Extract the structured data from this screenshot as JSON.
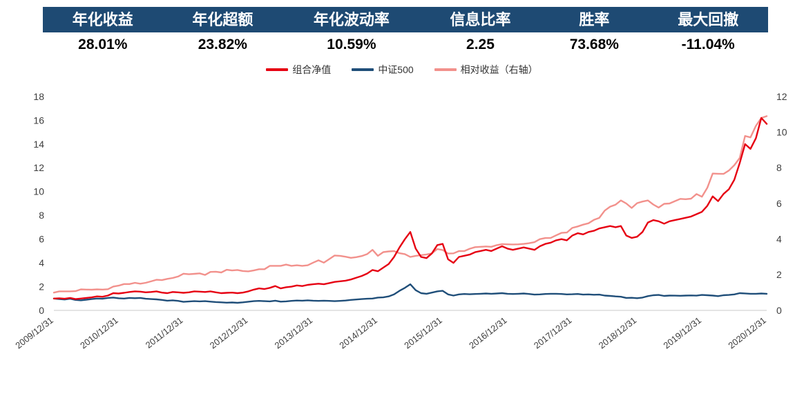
{
  "colors": {
    "header_bg": "#1e4a73",
    "portfolio_red": "#e60012",
    "index_navy": "#1f4e79",
    "relative_pink": "#f2918c",
    "axis_line": "#c8c8c8",
    "tick_text": "#3d3d3d"
  },
  "stats": {
    "items": [
      {
        "label": "年化收益",
        "value": "28.01%"
      },
      {
        "label": "年化超额",
        "value": "23.82%"
      },
      {
        "label": "年化波动率",
        "value": "10.59%"
      },
      {
        "label": "信息比率",
        "value": "2.25"
      },
      {
        "label": "胜率",
        "value": "73.68%"
      },
      {
        "label": "最大回撤",
        "value": "-11.04%"
      }
    ]
  },
  "chart_data": {
    "type": "line",
    "title": "",
    "grid": false,
    "legend_position": "top",
    "left_axis": {
      "min": 0,
      "max": 18,
      "step": 2,
      "ticks": [
        0,
        2,
        4,
        6,
        8,
        10,
        12,
        14,
        16,
        18
      ]
    },
    "right_axis": {
      "min": 0,
      "max": 12,
      "step": 2,
      "ticks": [
        0,
        2,
        4,
        6,
        8,
        10,
        12
      ]
    },
    "x_labels": [
      "2009/12/31",
      "2010/12/31",
      "2011/12/31",
      "2012/12/31",
      "2013/12/31",
      "2014/12/31",
      "2015/12/31",
      "2016/12/31",
      "2017/12/31",
      "2018/12/31",
      "2019/12/31",
      "2020/12/31"
    ],
    "x_label_month_indices": [
      0,
      12,
      24,
      36,
      48,
      60,
      72,
      84,
      96,
      108,
      120,
      132
    ],
    "series": [
      {
        "name": "组合净值",
        "axis": "left",
        "color": "#e60012",
        "values": [
          1.0,
          1.02,
          0.98,
          1.05,
          0.95,
          1.0,
          1.05,
          1.1,
          1.18,
          1.15,
          1.25,
          1.45,
          1.42,
          1.48,
          1.55,
          1.6,
          1.58,
          1.52,
          1.55,
          1.6,
          1.5,
          1.45,
          1.55,
          1.52,
          1.48,
          1.52,
          1.6,
          1.58,
          1.55,
          1.6,
          1.52,
          1.45,
          1.48,
          1.5,
          1.45,
          1.5,
          1.6,
          1.75,
          1.85,
          1.8,
          1.9,
          2.05,
          1.85,
          1.95,
          2.0,
          2.1,
          2.05,
          2.15,
          2.2,
          2.25,
          2.2,
          2.3,
          2.4,
          2.45,
          2.5,
          2.6,
          2.75,
          2.9,
          3.1,
          3.4,
          3.3,
          3.6,
          3.9,
          4.5,
          5.3,
          6.0,
          6.6,
          5.2,
          4.5,
          4.4,
          4.8,
          5.5,
          5.6,
          4.3,
          4.0,
          4.5,
          4.6,
          4.7,
          4.9,
          5.0,
          5.1,
          5.0,
          5.2,
          5.4,
          5.2,
          5.1,
          5.2,
          5.3,
          5.2,
          5.1,
          5.4,
          5.6,
          5.7,
          5.9,
          6.0,
          5.9,
          6.3,
          6.5,
          6.4,
          6.6,
          6.7,
          6.9,
          7.0,
          7.1,
          7.0,
          7.1,
          6.3,
          6.1,
          6.2,
          6.6,
          7.4,
          7.6,
          7.5,
          7.3,
          7.5,
          7.6,
          7.7,
          7.8,
          7.9,
          8.1,
          8.3,
          8.8,
          9.6,
          9.2,
          9.8,
          10.2,
          11.0,
          12.4,
          14.0,
          13.6,
          14.5,
          16.2,
          15.7
        ]
      },
      {
        "name": "中证500",
        "axis": "left",
        "color": "#1f4e79",
        "values": [
          1.0,
          0.95,
          0.92,
          0.98,
          0.88,
          0.85,
          0.9,
          0.95,
          1.0,
          0.98,
          1.05,
          1.08,
          1.02,
          1.0,
          1.05,
          1.03,
          1.05,
          0.98,
          0.95,
          0.93,
          0.88,
          0.82,
          0.85,
          0.8,
          0.72,
          0.75,
          0.78,
          0.76,
          0.78,
          0.74,
          0.7,
          0.68,
          0.65,
          0.67,
          0.64,
          0.68,
          0.73,
          0.78,
          0.8,
          0.78,
          0.76,
          0.82,
          0.74,
          0.76,
          0.8,
          0.83,
          0.82,
          0.85,
          0.82,
          0.8,
          0.82,
          0.8,
          0.78,
          0.8,
          0.83,
          0.88,
          0.92,
          0.95,
          0.98,
          1.0,
          1.08,
          1.1,
          1.18,
          1.35,
          1.65,
          1.9,
          2.2,
          1.7,
          1.45,
          1.4,
          1.5,
          1.6,
          1.65,
          1.35,
          1.25,
          1.35,
          1.38,
          1.36,
          1.38,
          1.4,
          1.42,
          1.4,
          1.42,
          1.45,
          1.4,
          1.38,
          1.4,
          1.42,
          1.38,
          1.33,
          1.35,
          1.38,
          1.4,
          1.4,
          1.38,
          1.35,
          1.36,
          1.38,
          1.33,
          1.35,
          1.32,
          1.33,
          1.25,
          1.22,
          1.18,
          1.15,
          1.05,
          1.06,
          1.03,
          1.08,
          1.2,
          1.28,
          1.3,
          1.22,
          1.25,
          1.24,
          1.23,
          1.25,
          1.26,
          1.24,
          1.3,
          1.28,
          1.25,
          1.2,
          1.28,
          1.3,
          1.35,
          1.45,
          1.43,
          1.4,
          1.4,
          1.42,
          1.4
        ]
      },
      {
        "name": "相对收益（右轴）",
        "axis": "right",
        "color": "#f2918c",
        "values": [
          1.0,
          1.07,
          1.07,
          1.07,
          1.08,
          1.18,
          1.17,
          1.16,
          1.18,
          1.17,
          1.19,
          1.34,
          1.39,
          1.48,
          1.48,
          1.55,
          1.5,
          1.55,
          1.63,
          1.72,
          1.7,
          1.77,
          1.82,
          1.9,
          2.06,
          2.03,
          2.05,
          2.08,
          1.99,
          2.16,
          2.17,
          2.13,
          2.28,
          2.24,
          2.27,
          2.21,
          2.19,
          2.24,
          2.31,
          2.31,
          2.5,
          2.5,
          2.5,
          2.57,
          2.5,
          2.53,
          2.5,
          2.53,
          2.68,
          2.81,
          2.68,
          2.88,
          3.08,
          3.06,
          3.01,
          2.95,
          2.99,
          3.05,
          3.16,
          3.4,
          3.06,
          3.27,
          3.31,
          3.33,
          3.21,
          3.16,
          3.0,
          3.06,
          3.1,
          3.14,
          3.2,
          3.44,
          3.39,
          3.19,
          3.2,
          3.33,
          3.33,
          3.46,
          3.55,
          3.57,
          3.59,
          3.57,
          3.66,
          3.72,
          3.71,
          3.7,
          3.71,
          3.73,
          3.77,
          3.83,
          4.0,
          4.06,
          4.07,
          4.21,
          4.35,
          4.37,
          4.63,
          4.71,
          4.81,
          4.89,
          5.08,
          5.19,
          5.6,
          5.82,
          5.93,
          6.17,
          6.0,
          5.75,
          6.02,
          6.11,
          6.17,
          5.94,
          5.77,
          5.98,
          6.0,
          6.13,
          6.26,
          6.24,
          6.27,
          6.53,
          6.38,
          6.88,
          7.68,
          7.67,
          7.66,
          7.85,
          8.15,
          8.55,
          9.79,
          9.71,
          10.36,
          10.8,
          10.9
        ]
      }
    ]
  }
}
